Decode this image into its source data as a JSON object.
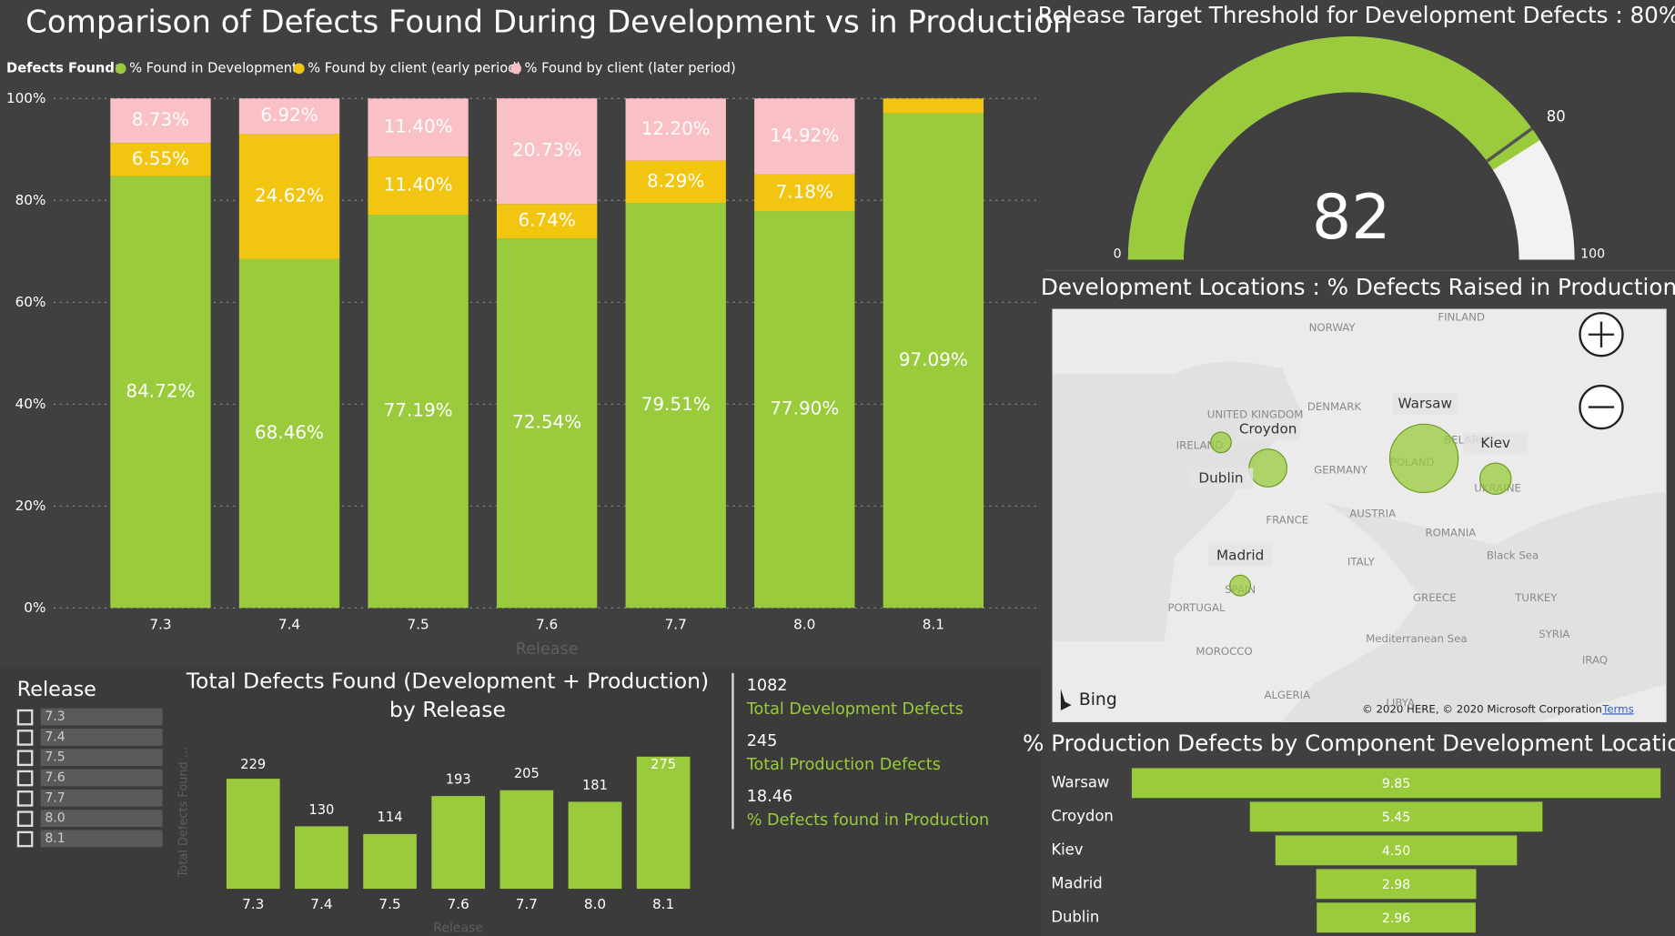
{
  "chart_data": [
    {
      "type": "stacked-bar",
      "title": "Comparison of Defects Found During Development vs in Production",
      "legend_title": "Defects Found:",
      "x_label": "Release",
      "categories": [
        "7.3",
        "7.4",
        "7.5",
        "7.6",
        "7.7",
        "8.0",
        "8.1"
      ],
      "series": [
        {
          "name": "% Found in Development",
          "color": "#9acb3c",
          "values": [
            84.72,
            68.46,
            77.19,
            72.54,
            79.51,
            77.9,
            97.09
          ],
          "value_labels": [
            "84.72%",
            "68.46%",
            "77.19%",
            "72.54%",
            "79.51%",
            "77.90%",
            "97.09%"
          ]
        },
        {
          "name": "% Found by client (early period)",
          "color": "#f2c511",
          "values": [
            6.55,
            24.62,
            11.4,
            6.74,
            8.29,
            7.18,
            2.91
          ],
          "value_labels": [
            "6.55%",
            "24.62%",
            "11.40%",
            "6.74%",
            "8.29%",
            "7.18%",
            null
          ]
        },
        {
          "name": "% Found by client (later period)",
          "color": "#f9c0c6",
          "values": [
            8.73,
            6.92,
            11.4,
            20.73,
            12.2,
            14.92,
            0
          ],
          "value_labels": [
            "8.73%",
            "6.92%",
            "11.40%",
            "20.73%",
            "12.20%",
            "14.92%",
            null
          ]
        }
      ],
      "ylim": [
        0,
        100
      ],
      "yticks": [
        {
          "value": 0,
          "label": "0%"
        },
        {
          "value": 20,
          "label": "20%"
        },
        {
          "value": 40,
          "label": "40%"
        },
        {
          "value": 60,
          "label": "60%"
        },
        {
          "value": 80,
          "label": "80%"
        },
        {
          "value": 100,
          "label": "100%"
        }
      ],
      "grid": true
    },
    {
      "type": "gauge",
      "title": "Release Target Threshold for Development Defects : 80%",
      "value": 82,
      "min": 0,
      "max": 100,
      "target": 80,
      "color": "#9acb3c"
    },
    {
      "type": "map",
      "title": "Development Locations : % Defects Raised in Production",
      "categories": [
        "Warsaw",
        "Croydon",
        "Kiev",
        "Dublin",
        "Madrid"
      ],
      "values": [
        9.85,
        5.45,
        4.5,
        2.96,
        2.98
      ],
      "color": "#9acb3c",
      "annotations": [
        "NORWAY",
        "FINLAND",
        "DENMARK",
        "UNITED KINGDOM",
        "IRELAND",
        "GERMANY",
        "BELARUS",
        "POLAND",
        "UKRAINE",
        "FRANCE",
        "AUSTRIA",
        "ROMANIA",
        "Black Sea",
        "ITALY",
        "SPAIN",
        "PORTUGAL",
        "GREECE",
        "TURKEY",
        "SYRIA",
        "Mediterranean Sea",
        "MOROCCO",
        "IRAQ",
        "ALGERIA",
        "LIBYA"
      ],
      "logo": "Bing",
      "attribution": "© 2020 HERE, © 2020 Microsoft Corporation",
      "terms": "Terms"
    },
    {
      "type": "bar",
      "title": "Total Defects Found (Development + Production) by Release",
      "x_label": "Release",
      "y_label": "Total Defects Found ...",
      "categories": [
        "7.3",
        "7.4",
        "7.5",
        "7.6",
        "7.7",
        "8.0",
        "8.1"
      ],
      "values": [
        229,
        130,
        114,
        193,
        205,
        181,
        275
      ],
      "color": "#9acb3c",
      "ylim": [
        0,
        300
      ]
    },
    {
      "type": "funnel",
      "title": "% Production Defects by Component Development Location",
      "categories": [
        "Warsaw",
        "Croydon",
        "Kiev",
        "Madrid",
        "Dublin"
      ],
      "values": [
        9.85,
        5.45,
        4.5,
        2.98,
        2.96
      ],
      "value_labels": [
        "9.85",
        "5.45",
        "4.50",
        "2.98",
        "2.96"
      ],
      "color": "#9acb3c"
    }
  ],
  "slicer": {
    "title": "Release",
    "items": [
      "7.3",
      "7.4",
      "7.5",
      "7.6",
      "7.7",
      "8.0",
      "8.1"
    ]
  },
  "kpis": [
    {
      "value": 1082,
      "label": "Total Development Defects"
    },
    {
      "value": 245,
      "label": "Total Production Defects"
    },
    {
      "value": 18.46,
      "label": "% Defects found in Production"
    }
  ]
}
